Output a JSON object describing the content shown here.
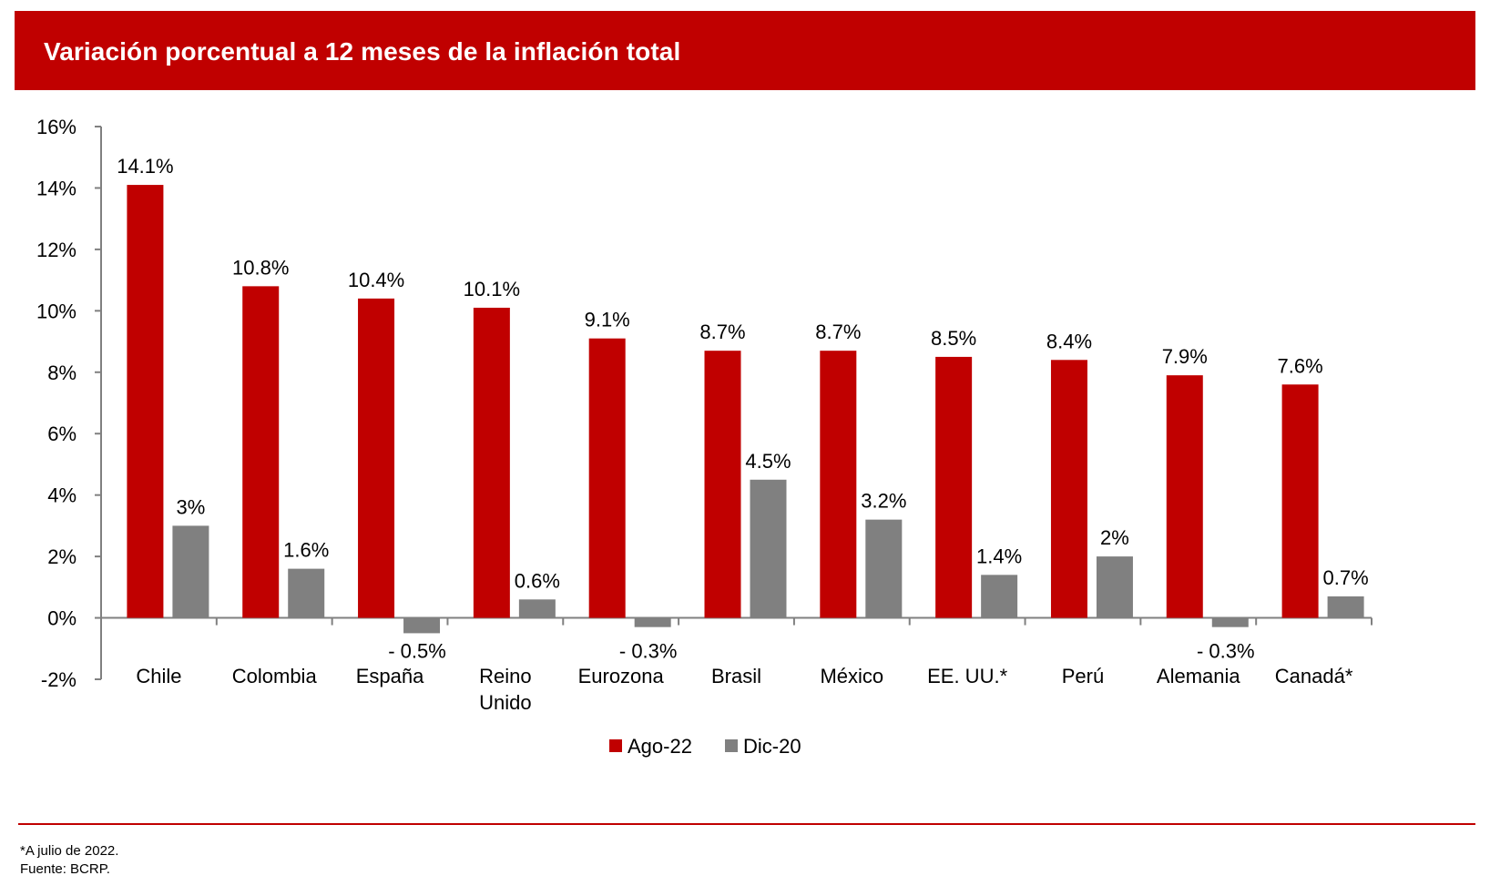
{
  "header": {
    "title": "Variación porcentual a 12 meses de la inflación total"
  },
  "colors": {
    "accent": "#c00000",
    "series_ago22": "#c00000",
    "series_dic20": "#808080"
  },
  "chart_data": {
    "type": "bar",
    "title": "Variación porcentual a 12 meses de la inflación total",
    "xlabel": "",
    "ylabel": "",
    "ylim": [
      -2,
      16
    ],
    "yticks": [
      16,
      14,
      12,
      10,
      8,
      6,
      4,
      2,
      0,
      -2
    ],
    "ytick_labels": [
      "16%",
      "14%",
      "12%",
      "10%",
      "8%",
      "6%",
      "4%",
      "2%",
      "0%",
      "-2%"
    ],
    "grid": false,
    "legend_position": "bottom-center",
    "categories": [
      "Chile",
      "Colombia",
      "España",
      "Reino Unido",
      "Eurozona",
      "Brasil",
      "México",
      "EE. UU.*",
      "Perú",
      "Alemania",
      "Canadá*"
    ],
    "category_lines": [
      [
        "Chile"
      ],
      [
        "Colombia"
      ],
      [
        "España"
      ],
      [
        "Reino",
        "Unido"
      ],
      [
        "Eurozona"
      ],
      [
        "Brasil"
      ],
      [
        "México"
      ],
      [
        "EE. UU.*"
      ],
      [
        "Perú"
      ],
      [
        "Alemania"
      ],
      [
        "Canadá*"
      ]
    ],
    "series": [
      {
        "name": "Ago-22",
        "color": "#c00000",
        "values": [
          14.1,
          10.8,
          10.4,
          10.1,
          9.1,
          8.7,
          8.7,
          8.5,
          8.4,
          7.9,
          7.6
        ],
        "labels": [
          "14.1%",
          "10.8%",
          "10.4%",
          "10.1%",
          "9.1%",
          "8.7%",
          "8.7%",
          "8.5%",
          "8.4%",
          "7.9%",
          "7.6%"
        ]
      },
      {
        "name": "Dic-20",
        "color": "#808080",
        "values": [
          3,
          1.6,
          -0.5,
          0.6,
          -0.3,
          4.5,
          3.2,
          1.4,
          2,
          -0.3,
          0.7
        ],
        "labels": [
          "3%",
          "1.6%",
          "- 0.5%",
          "0.6%",
          "- 0.3%",
          "4.5%",
          "3.2%",
          "1.4%",
          "2%",
          "- 0.3%",
          "0.7%"
        ]
      }
    ]
  },
  "footer": {
    "note": "*A julio de 2022.",
    "source": "Fuente: BCRP."
  }
}
